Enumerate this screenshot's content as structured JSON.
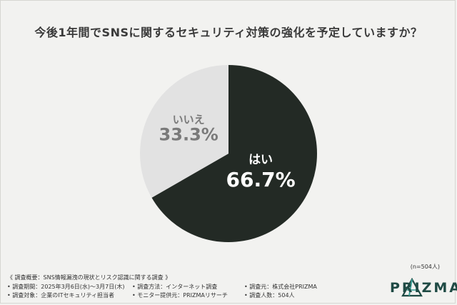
{
  "title": "今後1年間でSNSに関するセキュリティ対策の強化を予定していますか？",
  "chart_data": {
    "type": "pie",
    "title": "今後1年間でSNSに関するセキュリティ対策の強化を予定していますか？",
    "slices": [
      {
        "label": "はい",
        "value": 66.7,
        "value_label": "66.7%",
        "color": "#232a25",
        "text_color": "#ffffff"
      },
      {
        "label": "いいえ",
        "value": 33.3,
        "value_label": "33.3%",
        "color": "#e2e2e2",
        "text_color": "#7a7a7a"
      }
    ],
    "start": "12 o'clock",
    "direction": "clockwise"
  },
  "sample_size": "(n=504人)",
  "survey": {
    "heading": "《 調査概要：SNS情報漏洩の現状とリスク認識に関する調査 》",
    "period": "• 調査期間：2025年3月6日(水)〜3月7日(木)",
    "method": "• 調査方法：インターネット調査",
    "source": "• 調査元：株式会社PRIZMA",
    "target": "• 調査対象：企業のITセキュリティ担当者",
    "provider": "• モニター提供元：PRIZMAリサーチ",
    "count": "• 調査人数：504人"
  },
  "logo": {
    "text": "PRIZMA",
    "color": "#1f4a44",
    "icon": "prizma-triangle-logo-icon"
  }
}
